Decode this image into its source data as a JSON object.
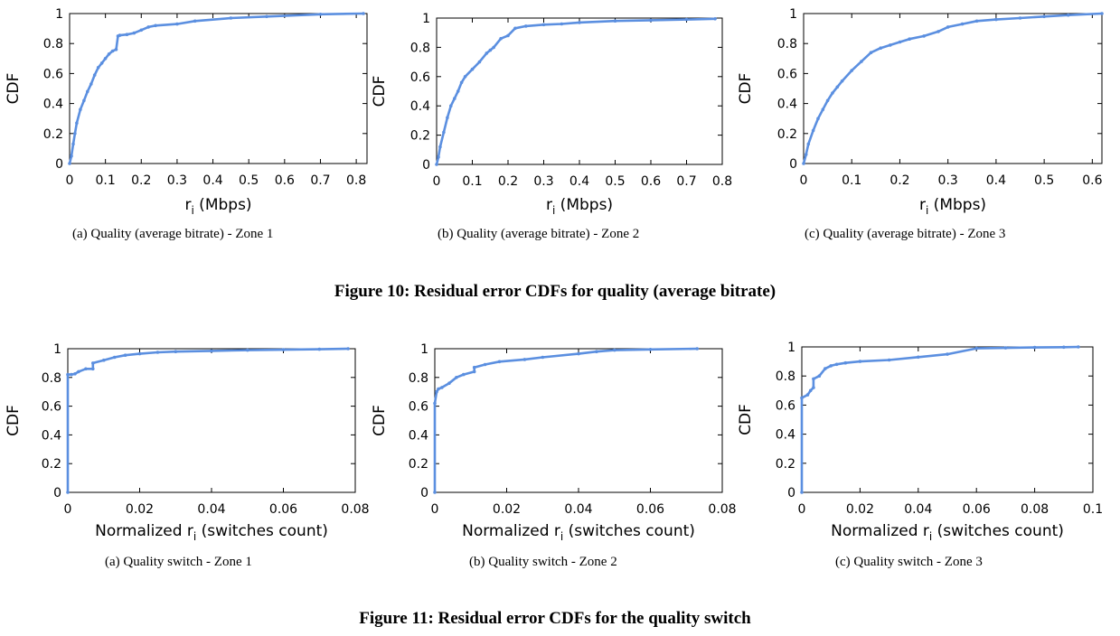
{
  "colors": {
    "series": "#5b8fe0",
    "axis": "#000000"
  },
  "figures": [
    {
      "title": "Figure 10: Residual error CDFs for quality (average bitrate)"
    },
    {
      "title": "Figure 11: Residual error CDFs for the quality switch"
    }
  ],
  "chart_data": [
    {
      "type": "line",
      "caption": "(a)  Quality (average bitrate) - Zone 1",
      "xlabel": "ri (Mbps)",
      "xlabel_main": "r",
      "xlabel_sub": "i",
      "xlabel_rest": " (Mbps)",
      "ylabel": "CDF",
      "xlim": [
        0,
        0.83
      ],
      "ylim": [
        0,
        1
      ],
      "xticks": [
        0,
        0.1,
        0.2,
        0.3,
        0.4,
        0.5,
        0.6,
        0.7,
        0.8
      ],
      "xtick_labels": [
        "0",
        "0.1",
        "0.2",
        "0.3",
        "0.4",
        "0.5",
        "0.6",
        "0.7",
        "0.8"
      ],
      "yticks": [
        0,
        0.2,
        0.4,
        0.6,
        0.8,
        1
      ],
      "ytick_labels": [
        "0",
        "0.2",
        "0.4",
        "0.6",
        "0.8",
        "1"
      ],
      "series": [
        {
          "x": [
            0,
            0.005,
            0.01,
            0.015,
            0.02,
            0.03,
            0.04,
            0.05,
            0.06,
            0.07,
            0.08,
            0.09,
            0.1,
            0.11,
            0.12,
            0.13,
            0.135,
            0.14,
            0.16,
            0.18,
            0.2,
            0.22,
            0.24,
            0.3,
            0.35,
            0.45,
            0.55,
            0.7,
            0.82
          ],
          "y": [
            0,
            0.05,
            0.13,
            0.2,
            0.27,
            0.36,
            0.42,
            0.48,
            0.53,
            0.59,
            0.64,
            0.67,
            0.7,
            0.73,
            0.75,
            0.76,
            0.85,
            0.855,
            0.86,
            0.87,
            0.89,
            0.91,
            0.92,
            0.93,
            0.95,
            0.97,
            0.98,
            0.995,
            1.0
          ]
        }
      ]
    },
    {
      "type": "line",
      "caption": "(b)  Quality (average bitrate) - Zone 2",
      "xlabel": "ri (Mbps)",
      "xlabel_main": "r",
      "xlabel_sub": "i",
      "xlabel_rest": " (Mbps)",
      "ylabel": "CDF",
      "xlim": [
        0,
        0.8
      ],
      "ylim": [
        0,
        1
      ],
      "xticks": [
        0,
        0.1,
        0.2,
        0.3,
        0.4,
        0.5,
        0.6,
        0.7,
        0.8
      ],
      "xtick_labels": [
        "0",
        "0.1",
        "0.2",
        "0.3",
        "0.4",
        "0.5",
        "0.6",
        "0.7",
        "0.8"
      ],
      "yticks": [
        0,
        0.2,
        0.4,
        0.6,
        0.8,
        1
      ],
      "ytick_labels": [
        "0",
        "0.2",
        "0.4",
        "0.6",
        "0.8",
        "1"
      ],
      "series": [
        {
          "x": [
            0,
            0.005,
            0.01,
            0.02,
            0.03,
            0.04,
            0.05,
            0.06,
            0.07,
            0.08,
            0.1,
            0.12,
            0.14,
            0.15,
            0.16,
            0.18,
            0.2,
            0.22,
            0.25,
            0.3,
            0.35,
            0.4,
            0.5,
            0.6,
            0.7,
            0.78
          ],
          "y": [
            0,
            0.05,
            0.12,
            0.22,
            0.32,
            0.4,
            0.45,
            0.5,
            0.56,
            0.6,
            0.65,
            0.7,
            0.76,
            0.78,
            0.8,
            0.86,
            0.88,
            0.93,
            0.945,
            0.955,
            0.96,
            0.97,
            0.98,
            0.985,
            0.99,
            0.995
          ]
        }
      ]
    },
    {
      "type": "line",
      "caption": "(c)  Quality (average bitrate) - Zone 3",
      "xlabel": "ri (Mbps)",
      "xlabel_main": "r",
      "xlabel_sub": "i",
      "xlabel_rest": " (Mbps)",
      "ylabel": "CDF",
      "xlim": [
        0,
        0.62
      ],
      "ylim": [
        0,
        1
      ],
      "xticks": [
        0,
        0.1,
        0.2,
        0.3,
        0.4,
        0.5,
        0.6
      ],
      "xtick_labels": [
        "0",
        "0.1",
        "0.2",
        "0.3",
        "0.4",
        "0.5",
        "0.6"
      ],
      "yticks": [
        0,
        0.2,
        0.4,
        0.6,
        0.8,
        1
      ],
      "ytick_labels": [
        "0",
        "0.2",
        "0.4",
        "0.6",
        "0.8",
        "1"
      ],
      "series": [
        {
          "x": [
            0,
            0.005,
            0.01,
            0.02,
            0.03,
            0.04,
            0.05,
            0.06,
            0.07,
            0.08,
            0.1,
            0.12,
            0.14,
            0.16,
            0.18,
            0.2,
            0.22,
            0.25,
            0.28,
            0.3,
            0.33,
            0.36,
            0.4,
            0.45,
            0.5,
            0.55,
            0.62
          ],
          "y": [
            0,
            0.06,
            0.13,
            0.22,
            0.3,
            0.36,
            0.42,
            0.47,
            0.51,
            0.55,
            0.62,
            0.68,
            0.74,
            0.77,
            0.79,
            0.81,
            0.83,
            0.85,
            0.88,
            0.91,
            0.93,
            0.95,
            0.96,
            0.97,
            0.98,
            0.99,
            1.0
          ]
        }
      ]
    },
    {
      "type": "line",
      "caption": "(a)  Quality switch - Zone 1",
      "xlabel": "Normalized ri (switches count)",
      "xlabel_main": "Normalized r",
      "xlabel_sub": "i",
      "xlabel_rest": " (switches count)",
      "ylabel": "CDF",
      "xlim": [
        0,
        0.08
      ],
      "ylim": [
        0,
        1
      ],
      "xticks": [
        0,
        0.02,
        0.04,
        0.06,
        0.08
      ],
      "xtick_labels": [
        "0",
        "0.02",
        "0.04",
        "0.06",
        "0.08"
      ],
      "yticks": [
        0,
        0.2,
        0.4,
        0.6,
        0.8,
        1
      ],
      "ytick_labels": [
        "0",
        "0.2",
        "0.4",
        "0.6",
        "0.8",
        "1"
      ],
      "series": [
        {
          "x": [
            0,
            0,
            0.001,
            0.002,
            0.003,
            0.005,
            0.007,
            0.007,
            0.01,
            0.013,
            0.016,
            0.02,
            0.025,
            0.03,
            0.04,
            0.05,
            0.06,
            0.07,
            0.078
          ],
          "y": [
            0,
            0.82,
            0.82,
            0.825,
            0.84,
            0.86,
            0.86,
            0.9,
            0.92,
            0.94,
            0.955,
            0.965,
            0.975,
            0.98,
            0.985,
            0.99,
            0.993,
            0.996,
            1.0
          ]
        }
      ]
    },
    {
      "type": "line",
      "caption": "(b)  Quality switch - Zone 2",
      "xlabel": "Normalized ri (switches count)",
      "xlabel_main": "Normalized r",
      "xlabel_sub": "i",
      "xlabel_rest": " (switches count)",
      "ylabel": "CDF",
      "xlim": [
        0,
        0.08
      ],
      "ylim": [
        0,
        1
      ],
      "xticks": [
        0,
        0.02,
        0.04,
        0.06,
        0.08
      ],
      "xtick_labels": [
        "0",
        "0.02",
        "0.04",
        "0.06",
        "0.08"
      ],
      "yticks": [
        0,
        0.2,
        0.4,
        0.6,
        0.8,
        1
      ],
      "ytick_labels": [
        "0",
        "0.2",
        "0.4",
        "0.6",
        "0.8",
        "1"
      ],
      "series": [
        {
          "x": [
            0,
            0,
            0.0005,
            0.001,
            0.002,
            0.004,
            0.006,
            0.008,
            0.011,
            0.011,
            0.014,
            0.018,
            0.025,
            0.03,
            0.04,
            0.045,
            0.05,
            0.06,
            0.073
          ],
          "y": [
            0,
            0.62,
            0.7,
            0.72,
            0.73,
            0.76,
            0.8,
            0.82,
            0.84,
            0.87,
            0.89,
            0.91,
            0.925,
            0.94,
            0.965,
            0.98,
            0.99,
            0.995,
            1.0
          ]
        }
      ]
    },
    {
      "type": "line",
      "caption": "(c)  Quality switch - Zone 3",
      "xlabel": "Normalized ri (switches count)",
      "xlabel_main": "Normalized r",
      "xlabel_sub": "i",
      "xlabel_rest": " (switches count)",
      "ylabel": "CDF",
      "xlim": [
        0,
        0.1
      ],
      "ylim": [
        0,
        1
      ],
      "xticks": [
        0,
        0.02,
        0.04,
        0.06,
        0.08,
        0.1
      ],
      "xtick_labels": [
        "0",
        "0.02",
        "0.04",
        "0.06",
        "0.08",
        "0.1"
      ],
      "yticks": [
        0,
        0.2,
        0.4,
        0.6,
        0.8,
        1
      ],
      "ytick_labels": [
        "0",
        "0.2",
        "0.4",
        "0.6",
        "0.8",
        "1"
      ],
      "series": [
        {
          "x": [
            0,
            0,
            0.002,
            0.003,
            0.004,
            0.004,
            0.006,
            0.008,
            0.01,
            0.012,
            0.015,
            0.02,
            0.03,
            0.04,
            0.05,
            0.06,
            0.07,
            0.08,
            0.09,
            0.095
          ],
          "y": [
            0,
            0.65,
            0.67,
            0.7,
            0.72,
            0.78,
            0.8,
            0.85,
            0.87,
            0.88,
            0.89,
            0.9,
            0.91,
            0.93,
            0.95,
            0.99,
            0.993,
            0.996,
            0.998,
            1.0
          ]
        }
      ]
    }
  ]
}
